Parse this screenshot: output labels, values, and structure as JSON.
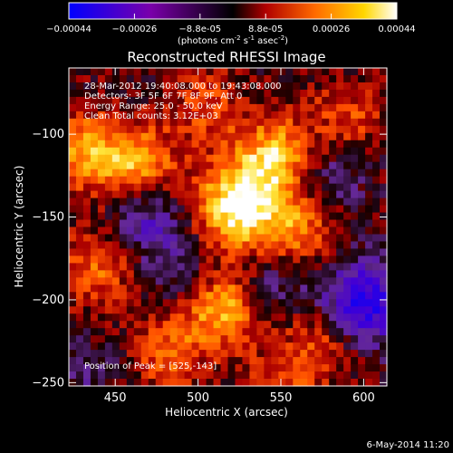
{
  "colorbar": {
    "ticks": [
      "-0.00044",
      "-0.00026",
      "-8.8e-05",
      "8.8e-05",
      "0.00026",
      "0.00044"
    ],
    "unit_main": "(photons cm",
    "unit_exp1": "-2",
    "unit_mid": " s",
    "unit_exp2": "-1",
    "unit_tail": " asec",
    "unit_exp3": "-2",
    "unit_close": ")",
    "colors": [
      "#0000ff",
      "#7a00aa",
      "#000000",
      "#b00000",
      "#ff6a00",
      "#ffd700",
      "#ffffff"
    ]
  },
  "annotations": {
    "time_range": "28-Mar-2012 19:40:08.000 to 19:43:08.000",
    "detectors": "Detectors: 3F 5F 6F 7F 8F 9F, Att 0",
    "energy_range": "Energy Range: 25.0 - 50.0 keV",
    "clean": "Clean    Total counts: 3.12E+03",
    "peak": "Position of Peak = [525,-143]"
  },
  "footer": {
    "date": "6-May-2014 11:20"
  },
  "chart_data": {
    "type": "heatmap",
    "title": "Reconstructed RHESSI Image",
    "xlabel": "Heliocentric X (arcsec)",
    "ylabel": "Heliocentric Y (arcsec)",
    "xlim": [
      422,
      614
    ],
    "ylim": [
      -252,
      -60
    ],
    "xticks": [
      450,
      500,
      550,
      600
    ],
    "yticks": [
      -100,
      -150,
      -200,
      -250
    ],
    "peak": {
      "x": 525,
      "y": -143
    },
    "blobs": [
      {
        "x": 525,
        "y": -143,
        "value": 1.0
      },
      {
        "x": 547,
        "y": -113,
        "value": 0.7
      },
      {
        "x": 463,
        "y": -118,
        "value": 0.65
      },
      {
        "x": 430,
        "y": -110,
        "value": 0.6
      },
      {
        "x": 560,
        "y": -158,
        "value": 0.5
      },
      {
        "x": 515,
        "y": -205,
        "value": 0.7
      },
      {
        "x": 440,
        "y": -180,
        "value": 0.45
      },
      {
        "x": 482,
        "y": -230,
        "value": 0.45
      },
      {
        "x": 575,
        "y": -225,
        "value": 0.4
      },
      {
        "x": 505,
        "y": -85,
        "value": 0.35
      },
      {
        "x": 590,
        "y": -90,
        "value": 0.35
      },
      {
        "x": 550,
        "y": -250,
        "value": 0.3
      },
      {
        "x": 470,
        "y": -153,
        "value": -0.45
      },
      {
        "x": 600,
        "y": -202,
        "value": -0.85
      },
      {
        "x": 580,
        "y": -125,
        "value": -0.3
      },
      {
        "x": 490,
        "y": -185,
        "value": -0.25
      },
      {
        "x": 545,
        "y": -190,
        "value": -0.3
      },
      {
        "x": 435,
        "y": -245,
        "value": -0.2
      }
    ]
  }
}
